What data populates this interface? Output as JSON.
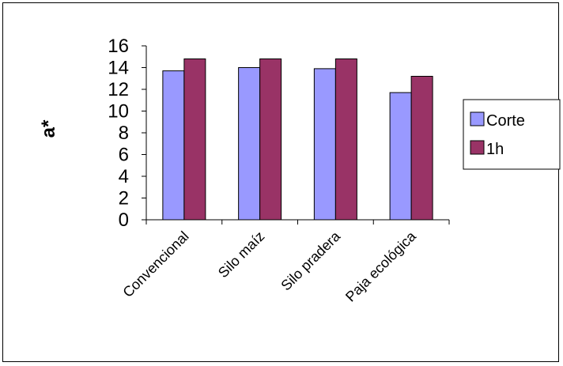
{
  "chart_data": {
    "type": "bar",
    "title": "",
    "xlabel": "",
    "ylabel": "a*",
    "ylim": [
      0,
      16
    ],
    "yticks": [
      0,
      2,
      4,
      6,
      8,
      10,
      12,
      14,
      16
    ],
    "grid": false,
    "legend_position": "right",
    "categories": [
      "Convencional",
      "Silo maíz",
      "Silo pradera",
      "Paja ecológica"
    ],
    "series": [
      {
        "name": "Corte",
        "color": "#9999ff",
        "values": [
          13.7,
          14.0,
          13.9,
          11.7
        ]
      },
      {
        "name": "1h",
        "color": "#993366",
        "values": [
          14.8,
          14.8,
          14.8,
          13.2
        ]
      }
    ]
  }
}
